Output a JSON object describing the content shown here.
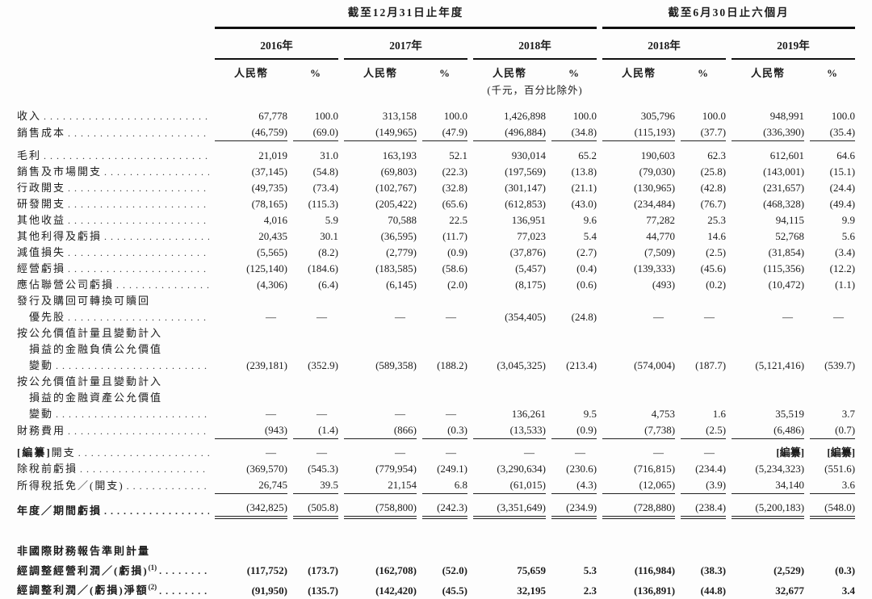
{
  "header": {
    "period_annual": "截至12月31日止年度",
    "period_interim": "截至6月30日止六個月",
    "years": [
      "2016年",
      "2017年",
      "2018年",
      "2018年",
      "2019年"
    ],
    "currency_label": "人民幣",
    "percent_label": "%",
    "unit_note": "(千元，百分比除外)"
  },
  "rows": [
    {
      "lines": [
        "收入"
      ],
      "gap": 12,
      "values": [
        "67,778",
        "100.0",
        "313,158",
        "100.0",
        "1,426,898",
        "100.0",
        "305,796",
        "100.0",
        "948,991",
        "100.0"
      ]
    },
    {
      "lines": [
        "銷售成本"
      ],
      "rule": "single",
      "values": [
        "(46,759)",
        "(69.0)",
        "(149,965)",
        "(47.9)",
        "(496,884)",
        "(34.8)",
        "(115,193)",
        "(37.7)",
        "(336,390)",
        "(35.4)"
      ]
    },
    {
      "lines": [
        "毛利"
      ],
      "gap": 8,
      "values": [
        "21,019",
        "31.0",
        "163,193",
        "52.1",
        "930,014",
        "65.2",
        "190,603",
        "62.3",
        "612,601",
        "64.6"
      ]
    },
    {
      "lines": [
        "銷售及市場開支"
      ],
      "values": [
        "(37,145)",
        "(54.8)",
        "(69,803)",
        "(22.3)",
        "(197,569)",
        "(13.8)",
        "(79,030)",
        "(25.8)",
        "(143,001)",
        "(15.1)"
      ]
    },
    {
      "lines": [
        "行政開支"
      ],
      "values": [
        "(49,735)",
        "(73.4)",
        "(102,767)",
        "(32.8)",
        "(301,147)",
        "(21.1)",
        "(130,965)",
        "(42.8)",
        "(231,657)",
        "(24.4)"
      ]
    },
    {
      "lines": [
        "研發開支"
      ],
      "values": [
        "(78,165)",
        "(115.3)",
        "(205,422)",
        "(65.6)",
        "(612,853)",
        "(43.0)",
        "(234,484)",
        "(76.7)",
        "(468,328)",
        "(49.4)"
      ]
    },
    {
      "lines": [
        "其他收益"
      ],
      "values": [
        "4,016",
        "5.9",
        "70,588",
        "22.5",
        "136,951",
        "9.6",
        "77,282",
        "25.3",
        "94,115",
        "9.9"
      ]
    },
    {
      "lines": [
        "其他利得及虧損"
      ],
      "values": [
        "20,435",
        "30.1",
        "(36,595)",
        "(11.7)",
        "77,023",
        "5.4",
        "44,770",
        "14.6",
        "52,768",
        "5.6"
      ]
    },
    {
      "lines": [
        "減值損失"
      ],
      "values": [
        "(5,565)",
        "(8.2)",
        "(2,779)",
        "(0.9)",
        "(37,876)",
        "(2.7)",
        "(7,509)",
        "(2.5)",
        "(31,854)",
        "(3.4)"
      ]
    },
    {
      "lines": [
        "經營虧損"
      ],
      "values": [
        "(125,140)",
        "(184.6)",
        "(183,585)",
        "(58.6)",
        "(5,457)",
        "(0.4)",
        "(139,333)",
        "(45.6)",
        "(115,356)",
        "(12.2)"
      ]
    },
    {
      "lines": [
        "應佔聯營公司虧損"
      ],
      "values": [
        "(4,306)",
        "(6.4)",
        "(6,145)",
        "(2.0)",
        "(8,175)",
        "(0.6)",
        "(493)",
        "(0.2)",
        "(10,472)",
        "(1.1)"
      ]
    },
    {
      "lines": [
        "發行及購回可轉換可贖回",
        "優先股"
      ],
      "values": [
        "—",
        "—",
        "—",
        "—",
        "(354,405)",
        "(24.8)",
        "—",
        "—",
        "—",
        "—"
      ]
    },
    {
      "lines": [
        "按公允價值計量且變動計入",
        "損益的金融負債公允價值",
        "變動"
      ],
      "values": [
        "(239,181)",
        "(352.9)",
        "(589,358)",
        "(188.2)",
        "(3,045,325)",
        "(213.4)",
        "(574,004)",
        "(187.7)",
        "(5,121,416)",
        "(539.7)"
      ]
    },
    {
      "lines": [
        "按公允價值計量且變動計入",
        "損益的金融資產公允價值",
        "變動"
      ],
      "values": [
        "—",
        "—",
        "—",
        "—",
        "136,261",
        "9.5",
        "4,753",
        "1.6",
        "35,519",
        "3.7"
      ]
    },
    {
      "lines": [
        "財務費用"
      ],
      "rule": "single",
      "values": [
        "(943)",
        "(1.4)",
        "(866)",
        "(0.3)",
        "(13,533)",
        "(0.9)",
        "(7,738)",
        "(2.5)",
        "(6,486)",
        "(0.7)"
      ]
    },
    {
      "lines": [
        "開支"
      ],
      "bold_prefix": "[編纂]",
      "gap": 7,
      "values": [
        "—",
        "—",
        "—",
        "—",
        "—",
        "—",
        "—",
        "—",
        "[編纂]",
        "[編纂]"
      ]
    },
    {
      "lines": [
        "除稅前虧損"
      ],
      "values": [
        "(369,570)",
        "(545.3)",
        "(779,954)",
        "(249.1)",
        "(3,290,634)",
        "(230.6)",
        "(716,815)",
        "(234.4)",
        "(5,234,323)",
        "(551.6)"
      ]
    },
    {
      "lines": [
        "所得稅抵免／(開支)"
      ],
      "rule": "single",
      "values": [
        "26,745",
        "39.5",
        "21,154",
        "6.8",
        "(61,015)",
        "(4.3)",
        "(12,065)",
        "(3.9)",
        "34,140",
        "3.6"
      ]
    },
    {
      "lines": [
        "年度／期間虧損"
      ],
      "bold": true,
      "rule": "double",
      "gap": 7,
      "values": [
        "(342,825)",
        "(505.8)",
        "(758,800)",
        "(242.3)",
        "(3,351,649)",
        "(234.9)",
        "(728,880)",
        "(238.4)",
        "(5,200,183)",
        "(548.0)"
      ]
    },
    {
      "lines": [
        "非國際財務報告準則計量"
      ],
      "bold": true,
      "no_leaders": true,
      "gap": 30,
      "values": [
        "",
        "",
        "",
        "",
        "",
        "",
        "",
        "",
        "",
        ""
      ]
    },
    {
      "lines": [
        "經調整經營利潤／(虧損)"
      ],
      "sup": "(1)",
      "bold": true,
      "bold_values": true,
      "values": [
        "(117,752)",
        "(173.7)",
        "(162,708)",
        "(52.0)",
        "75,659",
        "5.3",
        "(116,984)",
        "(38.3)",
        "(2,529)",
        "(0.3)"
      ]
    },
    {
      "lines": [
        "經調整利潤／(虧損)淨額"
      ],
      "sup": "(2)",
      "bold": true,
      "bold_values": true,
      "values": [
        "(91,950)",
        "(135.7)",
        "(142,420)",
        "(45.5)",
        "32,195",
        "2.3",
        "(136,891)",
        "(44.8)",
        "32,677",
        "3.4"
      ]
    }
  ]
}
